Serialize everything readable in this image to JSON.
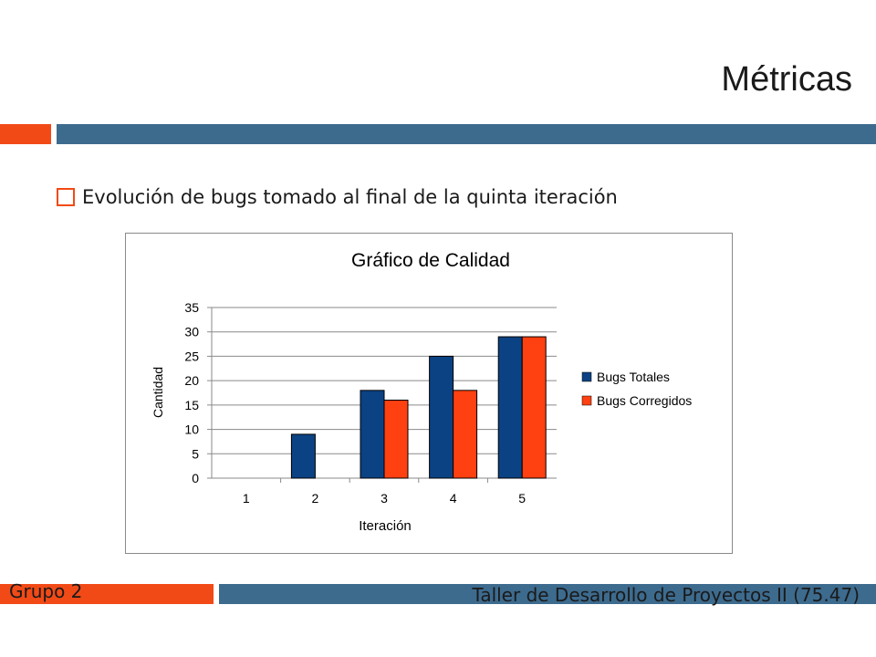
{
  "slide": {
    "title": "Métricas",
    "bullet": "Evolución de bugs tomado al final de la quinta iteración",
    "footer_left": "Grupo 2",
    "footer_right": "Taller de Desarrollo de Proyectos II (75.47)"
  },
  "colors": {
    "accent_orange": "#f24a17",
    "accent_blue": "#3d6b8e",
    "series_blue": "#0b4283",
    "series_orange": "#ff4010"
  },
  "chart_data": {
    "type": "bar",
    "title": "Gráfico de Calidad",
    "xlabel": "Iteración",
    "ylabel": "Cantidad",
    "categories": [
      "1",
      "2",
      "3",
      "4",
      "5"
    ],
    "ylim": [
      0,
      35
    ],
    "yticks": [
      0,
      5,
      10,
      15,
      20,
      25,
      30,
      35
    ],
    "grid": true,
    "legend_position": "right",
    "series": [
      {
        "name": "Bugs Totales",
        "values": [
          0,
          9,
          18,
          25,
          29
        ],
        "color": "#0b4283"
      },
      {
        "name": "Bugs Corregidos",
        "values": [
          0,
          0,
          16,
          18,
          29
        ],
        "color": "#ff4010"
      }
    ]
  }
}
